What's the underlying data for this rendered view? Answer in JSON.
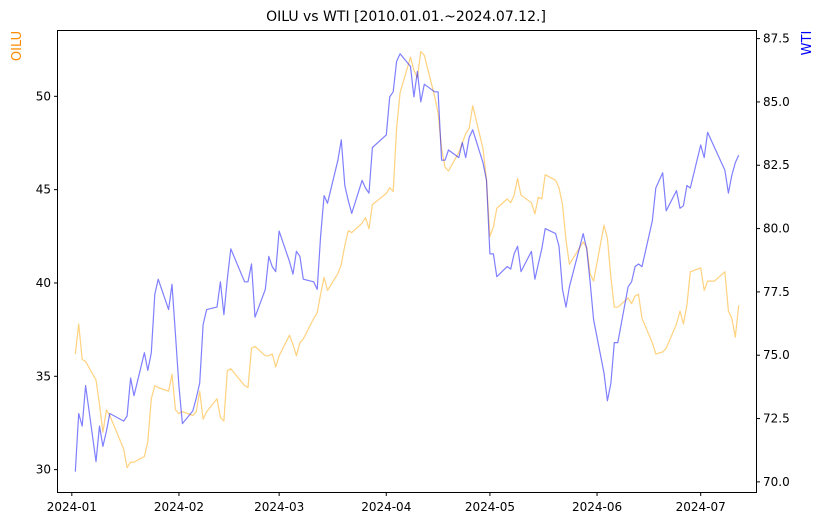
{
  "chart_data": {
    "type": "line",
    "title": "OILU vs WTI [2010.01.01.~2024.07.12.]",
    "xlabel": "",
    "x_range": [
      "2023-12-28",
      "2024-07-17"
    ],
    "x_ticks": [
      "2024-01",
      "2024-02",
      "2024-03",
      "2024-04",
      "2024-05",
      "2024-06",
      "2024-07"
    ],
    "grid": false,
    "legend": "none",
    "axes": {
      "left": {
        "label": "OILU",
        "label_color": "#ff8c00",
        "ylim": [
          28.8,
          53.5
        ],
        "ticks": [
          30,
          35,
          40,
          45,
          50
        ]
      },
      "right": {
        "label": "WTI",
        "label_color": "#0000ff",
        "ylim": [
          69.6,
          87.8
        ],
        "ticks": [
          "70.0",
          "72.5",
          "75.0",
          "77.5",
          "80.0",
          "82.5",
          "85.0",
          "87.5"
        ]
      }
    },
    "series": [
      {
        "axis": "left",
        "color": "#ffa500",
        "alpha": 0.5,
        "points": [
          [
            "2024-01-02",
            36.2
          ],
          [
            "2024-01-03",
            37.8
          ],
          [
            "2024-01-04",
            35.9
          ],
          [
            "2024-01-05",
            35.8
          ],
          [
            "2024-01-08",
            34.8
          ],
          [
            "2024-01-09",
            33.5
          ],
          [
            "2024-01-10",
            32.0
          ],
          [
            "2024-01-11",
            33.2
          ],
          [
            "2024-01-12",
            32.9
          ],
          [
            "2024-01-16",
            31.1
          ],
          [
            "2024-01-17",
            30.1
          ],
          [
            "2024-01-18",
            30.4
          ],
          [
            "2024-01-19",
            30.4
          ],
          [
            "2024-01-22",
            30.7
          ],
          [
            "2024-01-23",
            31.5
          ],
          [
            "2024-01-24",
            33.8
          ],
          [
            "2024-01-25",
            34.5
          ],
          [
            "2024-01-26",
            34.4
          ],
          [
            "2024-01-29",
            34.2
          ],
          [
            "2024-01-30",
            35.1
          ],
          [
            "2024-01-31",
            33.2
          ],
          [
            "2024-02-01",
            33.0
          ],
          [
            "2024-02-02",
            33.1
          ],
          [
            "2024-02-05",
            32.9
          ],
          [
            "2024-02-06",
            33.1
          ],
          [
            "2024-02-07",
            34.2
          ],
          [
            "2024-02-08",
            32.7
          ],
          [
            "2024-02-09",
            33.1
          ],
          [
            "2024-02-12",
            33.8
          ],
          [
            "2024-02-13",
            32.8
          ],
          [
            "2024-02-14",
            32.6
          ],
          [
            "2024-02-15",
            35.3
          ],
          [
            "2024-02-16",
            35.4
          ],
          [
            "2024-02-20",
            34.5
          ],
          [
            "2024-02-21",
            34.4
          ],
          [
            "2024-02-22",
            36.5
          ],
          [
            "2024-02-23",
            36.6
          ],
          [
            "2024-02-26",
            36.1
          ],
          [
            "2024-02-27",
            36.1
          ],
          [
            "2024-02-28",
            36.2
          ],
          [
            "2024-02-29",
            35.5
          ],
          [
            "2024-03-01",
            36.1
          ],
          [
            "2024-03-04",
            37.2
          ],
          [
            "2024-03-05",
            36.7
          ],
          [
            "2024-03-06",
            36.1
          ],
          [
            "2024-03-07",
            36.8
          ],
          [
            "2024-03-08",
            37.0
          ],
          [
            "2024-03-11",
            38.1
          ],
          [
            "2024-03-12",
            38.4
          ],
          [
            "2024-03-13",
            39.4
          ],
          [
            "2024-03-14",
            40.3
          ],
          [
            "2024-03-15",
            39.6
          ],
          [
            "2024-03-18",
            40.5
          ],
          [
            "2024-03-19",
            41.0
          ],
          [
            "2024-03-20",
            42.0
          ],
          [
            "2024-03-21",
            42.8
          ],
          [
            "2024-03-22",
            42.7
          ],
          [
            "2024-03-25",
            43.2
          ],
          [
            "2024-03-26",
            43.5
          ],
          [
            "2024-03-27",
            42.9
          ],
          [
            "2024-03-28",
            44.2
          ],
          [
            "2024-04-01",
            44.8
          ],
          [
            "2024-04-02",
            45.1
          ],
          [
            "2024-04-03",
            44.9
          ],
          [
            "2024-04-04",
            48.3
          ],
          [
            "2024-04-05",
            50.2
          ],
          [
            "2024-04-08",
            52.1
          ],
          [
            "2024-04-09",
            51.4
          ],
          [
            "2024-04-10",
            51.0
          ],
          [
            "2024-04-11",
            52.4
          ],
          [
            "2024-04-12",
            52.2
          ],
          [
            "2024-04-15",
            50.0
          ],
          [
            "2024-04-16",
            49.1
          ],
          [
            "2024-04-17",
            47.2
          ],
          [
            "2024-04-18",
            46.2
          ],
          [
            "2024-04-19",
            46.0
          ],
          [
            "2024-04-22",
            47.0
          ],
          [
            "2024-04-23",
            47.5
          ],
          [
            "2024-04-24",
            48.0
          ],
          [
            "2024-04-25",
            48.3
          ],
          [
            "2024-04-26",
            49.5
          ],
          [
            "2024-04-29",
            47.2
          ],
          [
            "2024-04-30",
            45.5
          ],
          [
            "2024-05-01",
            42.5
          ],
          [
            "2024-05-02",
            43.0
          ],
          [
            "2024-05-03",
            44.0
          ],
          [
            "2024-05-06",
            44.5
          ],
          [
            "2024-05-07",
            44.3
          ],
          [
            "2024-05-08",
            44.7
          ],
          [
            "2024-05-09",
            45.6
          ],
          [
            "2024-05-10",
            44.7
          ],
          [
            "2024-05-13",
            44.3
          ],
          [
            "2024-05-14",
            43.7
          ],
          [
            "2024-05-15",
            44.6
          ],
          [
            "2024-05-16",
            44.5
          ],
          [
            "2024-05-17",
            45.8
          ],
          [
            "2024-05-20",
            45.5
          ],
          [
            "2024-05-21",
            45.1
          ],
          [
            "2024-05-22",
            44.2
          ],
          [
            "2024-05-23",
            42.3
          ],
          [
            "2024-05-24",
            41.0
          ],
          [
            "2024-05-28",
            42.2
          ],
          [
            "2024-05-29",
            41.9
          ],
          [
            "2024-05-30",
            40.5
          ],
          [
            "2024-05-31",
            40.1
          ],
          [
            "2024-06-03",
            43.1
          ],
          [
            "2024-06-04",
            42.4
          ],
          [
            "2024-06-05",
            40.3
          ],
          [
            "2024-06-06",
            38.7
          ],
          [
            "2024-06-07",
            38.7
          ],
          [
            "2024-06-10",
            39.2
          ],
          [
            "2024-06-11",
            38.9
          ],
          [
            "2024-06-12",
            39.3
          ],
          [
            "2024-06-13",
            39.4
          ],
          [
            "2024-06-14",
            38.1
          ],
          [
            "2024-06-17",
            36.8
          ],
          [
            "2024-06-18",
            36.2
          ],
          [
            "2024-06-20",
            36.3
          ],
          [
            "2024-06-21",
            36.5
          ],
          [
            "2024-06-24",
            37.8
          ],
          [
            "2024-06-25",
            38.5
          ],
          [
            "2024-06-26",
            37.8
          ],
          [
            "2024-06-27",
            38.8
          ],
          [
            "2024-06-28",
            40.6
          ],
          [
            "2024-07-01",
            40.8
          ],
          [
            "2024-07-02",
            39.6
          ],
          [
            "2024-07-03",
            40.1
          ],
          [
            "2024-07-05",
            40.1
          ],
          [
            "2024-07-08",
            40.6
          ],
          [
            "2024-07-09",
            38.5
          ],
          [
            "2024-07-10",
            38.1
          ],
          [
            "2024-07-11",
            37.1
          ],
          [
            "2024-07-12",
            38.8
          ]
        ]
      },
      {
        "axis": "right",
        "color": "#0000ff",
        "alpha": 0.5,
        "points": [
          [
            "2024-01-02",
            70.4
          ],
          [
            "2024-01-03",
            72.7
          ],
          [
            "2024-01-04",
            72.2
          ],
          [
            "2024-01-05",
            73.8
          ],
          [
            "2024-01-08",
            70.8
          ],
          [
            "2024-01-09",
            72.2
          ],
          [
            "2024-01-10",
            71.4
          ],
          [
            "2024-01-11",
            72.0
          ],
          [
            "2024-01-12",
            72.7
          ],
          [
            "2024-01-16",
            72.4
          ],
          [
            "2024-01-17",
            72.6
          ],
          [
            "2024-01-18",
            74.1
          ],
          [
            "2024-01-19",
            73.4
          ],
          [
            "2024-01-22",
            75.1
          ],
          [
            "2024-01-23",
            74.4
          ],
          [
            "2024-01-24",
            75.1
          ],
          [
            "2024-01-25",
            77.4
          ],
          [
            "2024-01-26",
            78.0
          ],
          [
            "2024-01-29",
            76.8
          ],
          [
            "2024-01-30",
            77.8
          ],
          [
            "2024-01-31",
            75.8
          ],
          [
            "2024-02-01",
            73.8
          ],
          [
            "2024-02-02",
            72.3
          ],
          [
            "2024-02-05",
            72.8
          ],
          [
            "2024-02-06",
            73.3
          ],
          [
            "2024-02-07",
            73.9
          ],
          [
            "2024-02-08",
            76.2
          ],
          [
            "2024-02-09",
            76.8
          ],
          [
            "2024-02-12",
            76.9
          ],
          [
            "2024-02-13",
            77.9
          ],
          [
            "2024-02-14",
            76.6
          ],
          [
            "2024-02-15",
            78.0
          ],
          [
            "2024-02-16",
            79.2
          ],
          [
            "2024-02-20",
            77.9
          ],
          [
            "2024-02-21",
            77.9
          ],
          [
            "2024-02-22",
            78.6
          ],
          [
            "2024-02-23",
            76.5
          ],
          [
            "2024-02-26",
            77.6
          ],
          [
            "2024-02-27",
            78.9
          ],
          [
            "2024-02-28",
            78.5
          ],
          [
            "2024-02-29",
            78.3
          ],
          [
            "2024-03-01",
            79.9
          ],
          [
            "2024-03-04",
            78.7
          ],
          [
            "2024-03-05",
            78.2
          ],
          [
            "2024-03-06",
            79.1
          ],
          [
            "2024-03-07",
            78.9
          ],
          [
            "2024-03-08",
            78.0
          ],
          [
            "2024-03-11",
            77.9
          ],
          [
            "2024-03-12",
            77.6
          ],
          [
            "2024-03-13",
            79.7
          ],
          [
            "2024-03-14",
            81.3
          ],
          [
            "2024-03-15",
            81.0
          ],
          [
            "2024-03-18",
            82.7
          ],
          [
            "2024-03-19",
            83.5
          ],
          [
            "2024-03-20",
            81.7
          ],
          [
            "2024-03-21",
            81.1
          ],
          [
            "2024-03-22",
            80.6
          ],
          [
            "2024-03-25",
            81.9
          ],
          [
            "2024-03-26",
            81.6
          ],
          [
            "2024-03-27",
            81.4
          ],
          [
            "2024-03-28",
            83.2
          ],
          [
            "2024-04-01",
            83.7
          ],
          [
            "2024-04-02",
            85.2
          ],
          [
            "2024-04-03",
            85.4
          ],
          [
            "2024-04-04",
            86.6
          ],
          [
            "2024-04-05",
            86.9
          ],
          [
            "2024-04-08",
            86.4
          ],
          [
            "2024-04-09",
            85.2
          ],
          [
            "2024-04-10",
            86.2
          ],
          [
            "2024-04-11",
            85.0
          ],
          [
            "2024-04-12",
            85.7
          ],
          [
            "2024-04-15",
            85.4
          ],
          [
            "2024-04-16",
            85.4
          ],
          [
            "2024-04-17",
            82.7
          ],
          [
            "2024-04-18",
            82.7
          ],
          [
            "2024-04-19",
            83.1
          ],
          [
            "2024-04-22",
            82.8
          ],
          [
            "2024-04-23",
            83.4
          ],
          [
            "2024-04-24",
            82.8
          ],
          [
            "2024-04-25",
            83.6
          ],
          [
            "2024-04-26",
            83.9
          ],
          [
            "2024-04-29",
            82.6
          ],
          [
            "2024-04-30",
            81.9
          ],
          [
            "2024-05-01",
            79.0
          ],
          [
            "2024-05-02",
            79.0
          ],
          [
            "2024-05-03",
            78.1
          ],
          [
            "2024-05-06",
            78.5
          ],
          [
            "2024-05-07",
            78.4
          ],
          [
            "2024-05-08",
            79.0
          ],
          [
            "2024-05-09",
            79.3
          ],
          [
            "2024-05-10",
            78.3
          ],
          [
            "2024-05-13",
            79.1
          ],
          [
            "2024-05-14",
            78.0
          ],
          [
            "2024-05-15",
            78.6
          ],
          [
            "2024-05-16",
            79.2
          ],
          [
            "2024-05-17",
            80.0
          ],
          [
            "2024-05-20",
            79.8
          ],
          [
            "2024-05-21",
            79.3
          ],
          [
            "2024-05-22",
            77.6
          ],
          [
            "2024-05-23",
            76.9
          ],
          [
            "2024-05-24",
            77.7
          ],
          [
            "2024-05-28",
            79.8
          ],
          [
            "2024-05-29",
            79.2
          ],
          [
            "2024-05-30",
            77.9
          ],
          [
            "2024-05-31",
            76.4
          ],
          [
            "2024-06-03",
            74.3
          ],
          [
            "2024-06-04",
            73.2
          ],
          [
            "2024-06-05",
            73.9
          ],
          [
            "2024-06-06",
            75.5
          ],
          [
            "2024-06-07",
            75.5
          ],
          [
            "2024-06-10",
            77.7
          ],
          [
            "2024-06-11",
            77.9
          ],
          [
            "2024-06-12",
            78.5
          ],
          [
            "2024-06-13",
            78.6
          ],
          [
            "2024-06-14",
            78.5
          ],
          [
            "2024-06-17",
            80.3
          ],
          [
            "2024-06-18",
            81.6
          ],
          [
            "2024-06-20",
            82.2
          ],
          [
            "2024-06-21",
            80.7
          ],
          [
            "2024-06-24",
            81.5
          ],
          [
            "2024-06-25",
            80.8
          ],
          [
            "2024-06-26",
            80.9
          ],
          [
            "2024-06-27",
            81.7
          ],
          [
            "2024-06-28",
            81.6
          ],
          [
            "2024-07-01",
            83.3
          ],
          [
            "2024-07-02",
            82.8
          ],
          [
            "2024-07-03",
            83.8
          ],
          [
            "2024-07-05",
            83.2
          ],
          [
            "2024-07-08",
            82.3
          ],
          [
            "2024-07-09",
            81.4
          ],
          [
            "2024-07-10",
            82.1
          ],
          [
            "2024-07-11",
            82.6
          ],
          [
            "2024-07-12",
            82.9
          ]
        ]
      }
    ]
  }
}
